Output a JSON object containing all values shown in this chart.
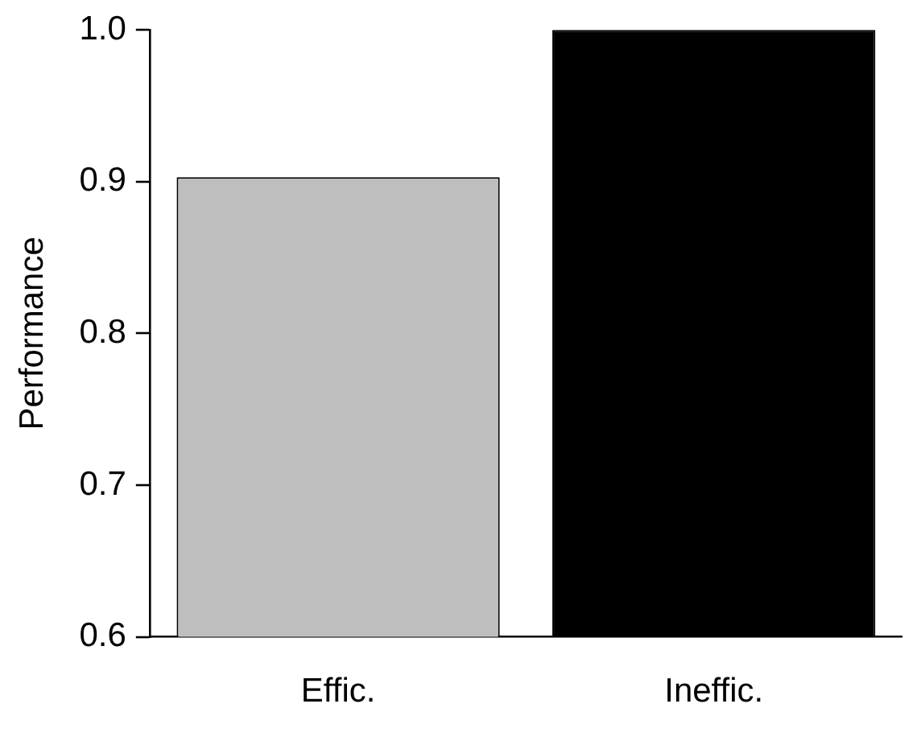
{
  "chart_data": {
    "type": "bar",
    "ylabel": "Performance",
    "categories": [
      "Effic.",
      "Ineffic."
    ],
    "values": [
      0.903,
      1.0
    ],
    "colors": [
      "#bebebe",
      "#000000"
    ],
    "ylim": [
      0.6,
      1.0
    ],
    "yticks": [
      0.6,
      0.7,
      0.8,
      0.9,
      {
        "value": 1,
        "label": "1.0"
      }
    ],
    "grid": false,
    "legend": false
  }
}
